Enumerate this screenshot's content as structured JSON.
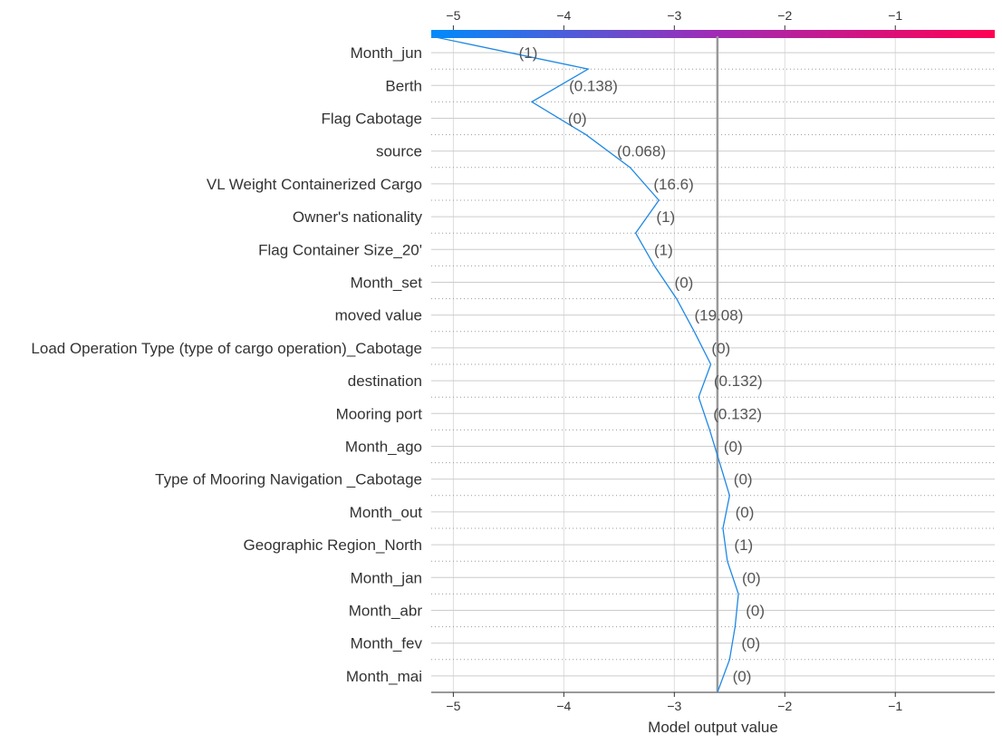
{
  "chart_data": {
    "type": "line",
    "xlabel": "Model output value",
    "xlim": [
      -5.2,
      -0.1
    ],
    "xticks": [
      -5,
      -4,
      -3,
      -2,
      -1
    ],
    "xtick_labels": [
      "−5",
      "−4",
      "−3",
      "−2",
      "−1"
    ],
    "base_value": -2.61,
    "start_value": -5.2,
    "grid": true,
    "colorbar": {
      "from": "#008bfb",
      "mid": "#9f2bb6",
      "to": "#ff0052"
    },
    "line_color": "#1e88e5",
    "features": [
      {
        "name": "Month_jun",
        "value": "(1)",
        "x": -3.78
      },
      {
        "name": "Berth",
        "value": "(0.138)",
        "x": -4.29
      },
      {
        "name": "Flag Cabotage",
        "value": "(0)",
        "x": -3.8
      },
      {
        "name": "source",
        "value": "(0.068)",
        "x": -3.4
      },
      {
        "name": "VL Weight Containerized Cargo",
        "value": "(16.6)",
        "x": -3.14
      },
      {
        "name": "Owner's nationality",
        "value": "(1)",
        "x": -3.35
      },
      {
        "name": "Flag Container Size_20'",
        "value": "(1)",
        "x": -3.18
      },
      {
        "name": "Month_set",
        "value": "(0)",
        "x": -2.98
      },
      {
        "name": "moved value",
        "value": "(19.08)",
        "x": -2.82
      },
      {
        "name": "Load Operation Type (type of cargo operation)_Cabotage",
        "value": "(0)",
        "x": -2.67
      },
      {
        "name": "destination",
        "value": "(0.132)",
        "x": -2.78
      },
      {
        "name": "Mooring port",
        "value": "(0.132)",
        "x": -2.68
      },
      {
        "name": "Month_ago",
        "value": "(0)",
        "x": -2.59
      },
      {
        "name": "Type of Mooring Navigation _Cabotage",
        "value": "(0)",
        "x": -2.5
      },
      {
        "name": "Month_out",
        "value": "(0)",
        "x": -2.56
      },
      {
        "name": "Geographic Region_North",
        "value": "(1)",
        "x": -2.52
      },
      {
        "name": "Month_jan",
        "value": "(0)",
        "x": -2.42
      },
      {
        "name": "Month_abr",
        "value": "(0)",
        "x": -2.45
      },
      {
        "name": "Month_fev",
        "value": "(0)",
        "x": -2.5
      },
      {
        "name": "Month_mai",
        "value": "(0)",
        "x": -2.61
      }
    ]
  }
}
